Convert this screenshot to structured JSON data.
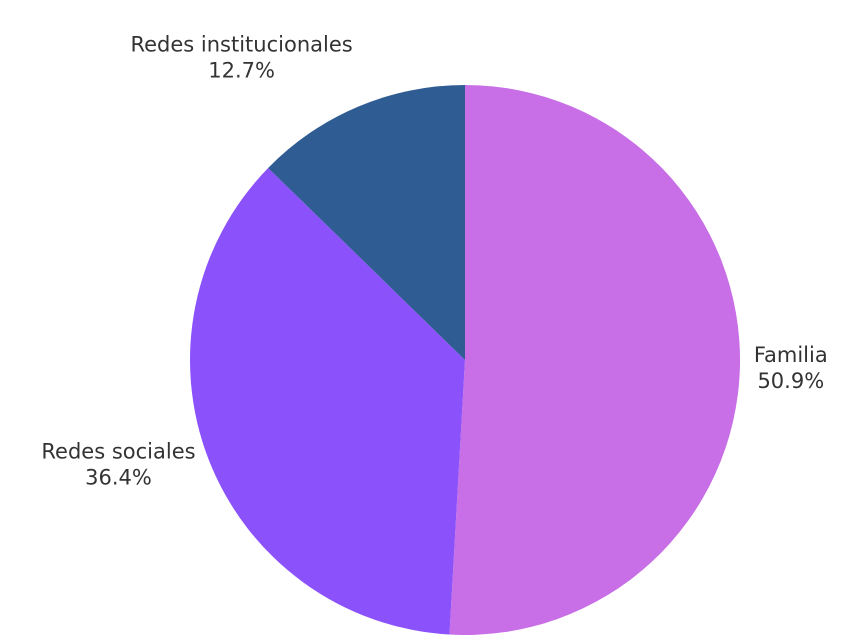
{
  "chart_data": {
    "type": "pie",
    "title": "",
    "start_angle_deg": 0,
    "direction": "clockwise",
    "slices": [
      {
        "label": "Familia",
        "percent_text": "50.9%",
        "value": 50.9,
        "color": "#c86ee6"
      },
      {
        "label": "Redes sociales",
        "percent_text": "36.4%",
        "value": 36.4,
        "color": "#8b52fb"
      },
      {
        "label": "Redes institucionales",
        "percent_text": "12.7%",
        "value": 12.7,
        "color": "#2e5c93"
      }
    ]
  }
}
